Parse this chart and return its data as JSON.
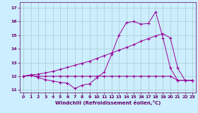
{
  "xlabel": "Windchill (Refroidissement éolien,°C)",
  "background_color": "#cceeff",
  "grid_color": "#aacccc",
  "line_color": "#990099",
  "xlim": [
    -0.5,
    23.5
  ],
  "ylim": [
    10.8,
    17.4
  ],
  "yticks": [
    11,
    12,
    13,
    14,
    15,
    16,
    17
  ],
  "xticks": [
    0,
    1,
    2,
    3,
    4,
    5,
    6,
    7,
    8,
    9,
    10,
    11,
    12,
    13,
    14,
    15,
    16,
    17,
    18,
    19,
    20,
    21,
    22,
    23
  ],
  "series1_x": [
    0,
    1,
    2,
    3,
    4,
    5,
    6,
    7,
    8,
    9,
    10,
    11,
    12,
    13,
    14,
    15,
    16,
    17,
    18,
    19,
    20,
    21,
    22,
    23
  ],
  "series1_y": [
    12.0,
    12.1,
    11.9,
    11.75,
    11.65,
    11.55,
    11.5,
    11.1,
    11.35,
    11.45,
    11.9,
    12.3,
    13.6,
    15.0,
    15.9,
    16.0,
    15.8,
    15.85,
    16.7,
    14.8,
    12.6,
    11.7,
    11.7,
    11.7
  ],
  "series2_x": [
    0,
    1,
    2,
    3,
    4,
    5,
    6,
    7,
    8,
    9,
    10,
    11,
    12,
    13,
    14,
    15,
    16,
    17,
    18,
    19,
    20,
    21,
    22,
    23
  ],
  "series2_y": [
    12.0,
    12.05,
    12.0,
    12.0,
    12.0,
    12.0,
    12.0,
    12.0,
    12.0,
    12.0,
    12.0,
    12.0,
    12.0,
    12.0,
    12.0,
    12.0,
    12.0,
    12.0,
    12.0,
    12.0,
    12.0,
    11.7,
    11.7,
    11.7
  ],
  "series3_x": [
    0,
    1,
    2,
    3,
    4,
    5,
    6,
    7,
    8,
    9,
    10,
    11,
    12,
    13,
    14,
    15,
    16,
    17,
    18,
    19,
    20,
    21,
    22,
    23
  ],
  "series3_y": [
    12.0,
    12.1,
    12.15,
    12.25,
    12.35,
    12.5,
    12.65,
    12.8,
    12.95,
    13.1,
    13.3,
    13.5,
    13.7,
    13.9,
    14.1,
    14.3,
    14.55,
    14.75,
    14.95,
    15.1,
    14.8,
    12.6,
    11.7,
    11.7
  ]
}
